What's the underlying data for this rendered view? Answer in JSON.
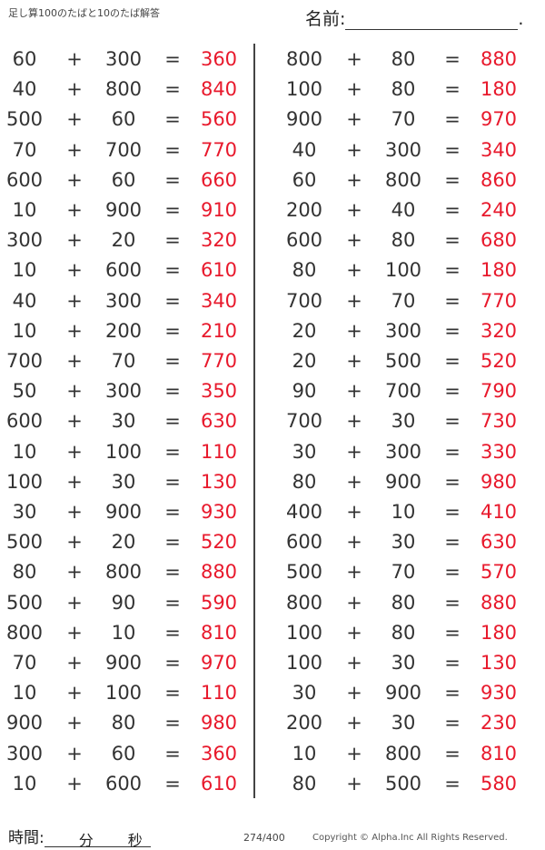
{
  "header": {
    "title": "足し算100のたばと10のたば解答",
    "name_label": "名前:",
    "name_end": "."
  },
  "operator": "+",
  "equals": "=",
  "left_column": [
    {
      "a": "60",
      "b": "300",
      "answer": "360"
    },
    {
      "a": "40",
      "b": "800",
      "answer": "840"
    },
    {
      "a": "500",
      "b": "60",
      "answer": "560"
    },
    {
      "a": "70",
      "b": "700",
      "answer": "770"
    },
    {
      "a": "600",
      "b": "60",
      "answer": "660"
    },
    {
      "a": "10",
      "b": "900",
      "answer": "910"
    },
    {
      "a": "300",
      "b": "20",
      "answer": "320"
    },
    {
      "a": "10",
      "b": "600",
      "answer": "610"
    },
    {
      "a": "40",
      "b": "300",
      "answer": "340"
    },
    {
      "a": "10",
      "b": "200",
      "answer": "210"
    },
    {
      "a": "700",
      "b": "70",
      "answer": "770"
    },
    {
      "a": "50",
      "b": "300",
      "answer": "350"
    },
    {
      "a": "600",
      "b": "30",
      "answer": "630"
    },
    {
      "a": "10",
      "b": "100",
      "answer": "110"
    },
    {
      "a": "100",
      "b": "30",
      "answer": "130"
    },
    {
      "a": "30",
      "b": "900",
      "answer": "930"
    },
    {
      "a": "500",
      "b": "20",
      "answer": "520"
    },
    {
      "a": "80",
      "b": "800",
      "answer": "880"
    },
    {
      "a": "500",
      "b": "90",
      "answer": "590"
    },
    {
      "a": "800",
      "b": "10",
      "answer": "810"
    },
    {
      "a": "70",
      "b": "900",
      "answer": "970"
    },
    {
      "a": "10",
      "b": "100",
      "answer": "110"
    },
    {
      "a": "900",
      "b": "80",
      "answer": "980"
    },
    {
      "a": "300",
      "b": "60",
      "answer": "360"
    },
    {
      "a": "10",
      "b": "600",
      "answer": "610"
    }
  ],
  "right_column": [
    {
      "a": "800",
      "b": "80",
      "answer": "880"
    },
    {
      "a": "100",
      "b": "80",
      "answer": "180"
    },
    {
      "a": "900",
      "b": "70",
      "answer": "970"
    },
    {
      "a": "40",
      "b": "300",
      "answer": "340"
    },
    {
      "a": "60",
      "b": "800",
      "answer": "860"
    },
    {
      "a": "200",
      "b": "40",
      "answer": "240"
    },
    {
      "a": "600",
      "b": "80",
      "answer": "680"
    },
    {
      "a": "80",
      "b": "100",
      "answer": "180"
    },
    {
      "a": "700",
      "b": "70",
      "answer": "770"
    },
    {
      "a": "20",
      "b": "300",
      "answer": "320"
    },
    {
      "a": "20",
      "b": "500",
      "answer": "520"
    },
    {
      "a": "90",
      "b": "700",
      "answer": "790"
    },
    {
      "a": "700",
      "b": "30",
      "answer": "730"
    },
    {
      "a": "30",
      "b": "300",
      "answer": "330"
    },
    {
      "a": "80",
      "b": "900",
      "answer": "980"
    },
    {
      "a": "400",
      "b": "10",
      "answer": "410"
    },
    {
      "a": "600",
      "b": "30",
      "answer": "630"
    },
    {
      "a": "500",
      "b": "70",
      "answer": "570"
    },
    {
      "a": "800",
      "b": "80",
      "answer": "880"
    },
    {
      "a": "100",
      "b": "80",
      "answer": "180"
    },
    {
      "a": "100",
      "b": "30",
      "answer": "130"
    },
    {
      "a": "30",
      "b": "900",
      "answer": "930"
    },
    {
      "a": "200",
      "b": "30",
      "answer": "230"
    },
    {
      "a": "10",
      "b": "800",
      "answer": "810"
    },
    {
      "a": "80",
      "b": "500",
      "answer": "580"
    }
  ],
  "footer": {
    "time_label": "時間:",
    "minutes_label": "分",
    "seconds_label": "秒",
    "page": "274/400",
    "copyright": "Copyright ©  Alpha.Inc All Rights Reserved."
  },
  "colors": {
    "answer": "#e8192c",
    "text": "#333333"
  }
}
